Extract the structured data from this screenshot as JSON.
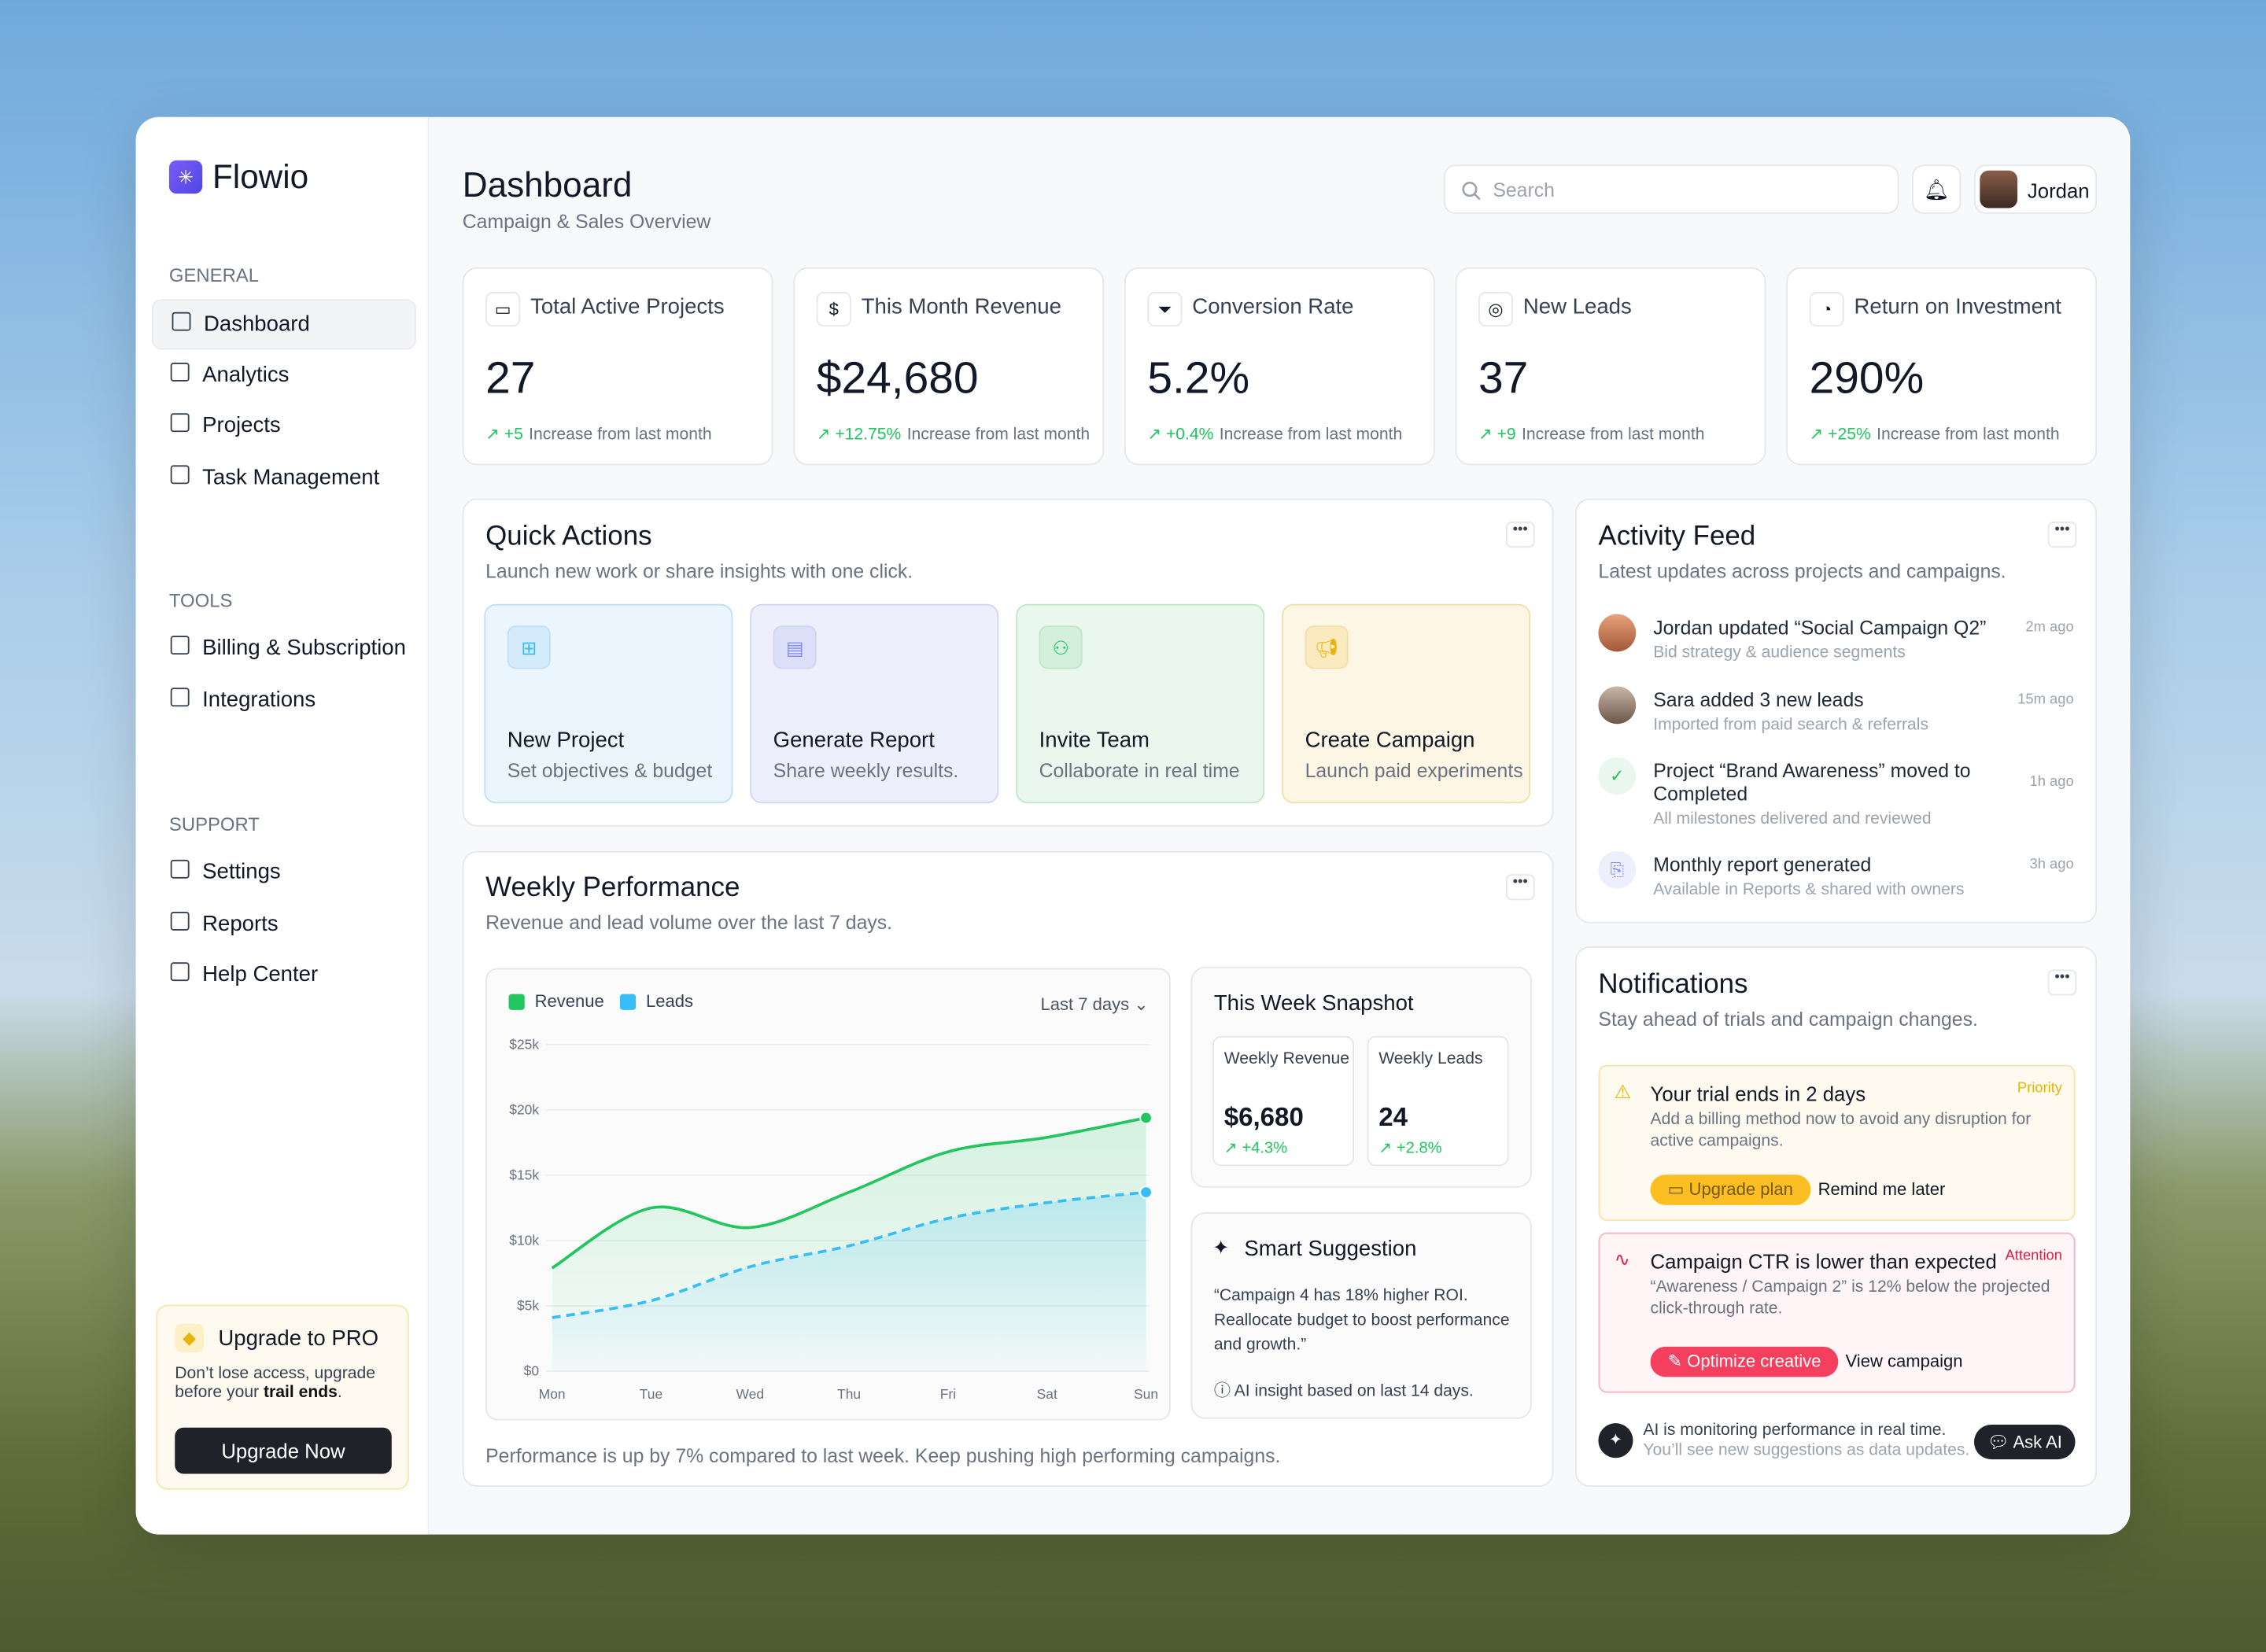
{
  "brand": "Flowio",
  "nav": [
    {
      "title": "GENERAL",
      "items": [
        "Dashboard",
        "Analytics",
        "Projects",
        "Task Management"
      ]
    },
    {
      "title": "TOOLS",
      "items": [
        "Billing & Subscription",
        "Integrations"
      ]
    },
    {
      "title": "SUPPORT",
      "items": [
        "Settings",
        "Reports",
        "Help Center"
      ]
    }
  ],
  "upgrade": {
    "title": "Upgrade to PRO",
    "text": "Don’t lose access, upgrade before your",
    "emphasis": "trail ends",
    "end": ".",
    "button": "Upgrade Now"
  },
  "header": {
    "title": "Dashboard",
    "subtitle": "Campaign & Sales Overview",
    "search": "Search",
    "user": "Jordan"
  },
  "stats": [
    {
      "label": "Total Active Projects",
      "value": "27",
      "change": "+5",
      "note": "Increase from last month"
    },
    {
      "label": "This Month Revenue",
      "value": "$24,680",
      "change": "+12.75%",
      "note": "Increase from last month"
    },
    {
      "label": "Conversion Rate",
      "value": "5.2%",
      "change": "+0.4%",
      "note": "Increase from last month"
    },
    {
      "label": "New Leads",
      "value": "37",
      "change": "+9",
      "note": "Increase from last month"
    },
    {
      "label": "Return on Investment",
      "value": "290%",
      "change": "+25%",
      "note": "Increase from last month"
    }
  ],
  "quick_actions": {
    "title": "Quick Actions",
    "subtitle": "Launch new work or share insights with one click.",
    "actions": [
      {
        "title": "New Project",
        "subtitle": "Set objectives & budget"
      },
      {
        "title": "Generate Report",
        "subtitle": "Share weekly results."
      },
      {
        "title": "Invite Team",
        "subtitle": "Collaborate in real time"
      },
      {
        "title": "Create Campaign",
        "subtitle": "Launch paid experiments"
      }
    ]
  },
  "performance": {
    "title": "Weekly Performance",
    "subtitle": "Revenue and lead volume over the last 7 days.",
    "range": "Last 7 days",
    "footer": "Performance is up by 7% compared to last week. Keep pushing high performing campaigns.",
    "chart_data": {
      "type": "line",
      "categories": [
        "Mon",
        "Tue",
        "Wed",
        "Thu",
        "Fri",
        "Sat",
        "Sun"
      ],
      "series": [
        {
          "name": "Revenue",
          "color": "#22c55e",
          "values": [
            7900,
            12500,
            11000,
            13700,
            16800,
            17900,
            19400
          ]
        },
        {
          "name": "Leads",
          "color": "#38bdf8",
          "values": [
            4100,
            5400,
            8000,
            9600,
            11700,
            12900,
            13700
          ]
        }
      ],
      "ylim": [
        0,
        25000
      ],
      "yticks": [
        {
          "value": 0,
          "label": "$0"
        },
        {
          "value": 5000,
          "label": "$5k"
        },
        {
          "value": 10000,
          "label": "$10k"
        },
        {
          "value": 15000,
          "label": "$15k"
        },
        {
          "value": 20000,
          "label": "$20k"
        },
        {
          "value": 25000,
          "label": "$25k"
        }
      ],
      "grid": true
    }
  },
  "snapshot": {
    "title": "This Week Snapshot",
    "items": [
      {
        "label": "Weekly Revenue",
        "value": "$6,680",
        "change": "+4.3%"
      },
      {
        "label": "Weekly Leads",
        "value": "24",
        "change": "+2.8%"
      }
    ]
  },
  "suggestion": {
    "title": "Smart Suggestion",
    "text": "“Campaign 4 has 18% higher ROI. Reallocate budget to boost performance and growth.”",
    "note": "AI insight based on last 14 days."
  },
  "activity": {
    "title": "Activity Feed",
    "subtitle": "Latest updates across projects and campaigns.",
    "items": [
      {
        "text": "Jordan updated “Social Campaign Q2”",
        "detail": "Bid strategy & audience segments",
        "time": "2m ago"
      },
      {
        "text": "Sara added 3 new leads",
        "detail": "Imported from paid search & referrals",
        "time": "15m ago"
      },
      {
        "text": "Project “Brand Awareness” moved to Completed",
        "detail": "All milestones delivered and reviewed",
        "time": "1h ago"
      },
      {
        "text": "Monthly report generated",
        "detail": "Available in Reports & shared with owners",
        "time": "3h ago"
      }
    ]
  },
  "notifications": {
    "title": "Notifications",
    "subtitle": "Stay ahead of trials and campaign changes.",
    "items": [
      {
        "title": "Your trial ends in 2 days",
        "tag": "Priority",
        "text": "Add a billing method now to avoid any disruption for active campaigns.",
        "primary": "Upgrade plan",
        "secondary": "Remind me later"
      },
      {
        "title": "Campaign CTR is lower than expected",
        "tag": "Attention",
        "text": "“Awareness / Campaign 2” is 12% below the projected click-through rate.",
        "primary": "Optimize creative",
        "secondary": "View campaign"
      }
    ],
    "ai": {
      "title": "AI is monitoring performance in real time.",
      "text": "You’ll see new suggestions as data updates.",
      "button": "Ask AI"
    }
  }
}
